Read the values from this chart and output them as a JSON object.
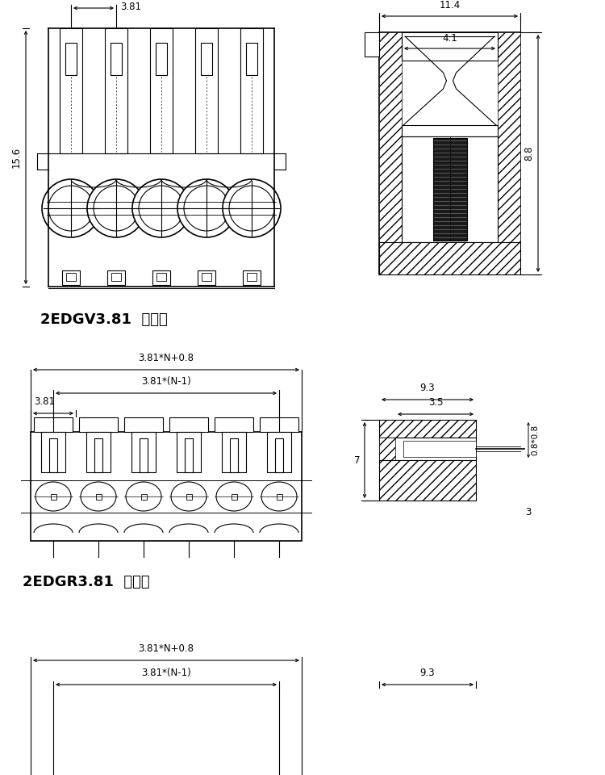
{
  "bg_color": "#ffffff",
  "lc": "#000000",
  "title1": "2EDGV3.81  直针座",
  "title2": "2EDGR3.81  弯针座",
  "dim_381": "3.81",
  "dim_156": "15.6",
  "dim_114": "11.4",
  "dim_41": "4.1",
  "dim_88": "8.8",
  "dim_381N08": "3.81*N+0.8",
  "dim_381N1": "3.81*(N-1)",
  "dim_381s": "3.81",
  "dim_93": "9.3",
  "dim_35": "3.5",
  "dim_7": "7",
  "dim_3": "3",
  "dim_08x08": "0.8*0.8"
}
